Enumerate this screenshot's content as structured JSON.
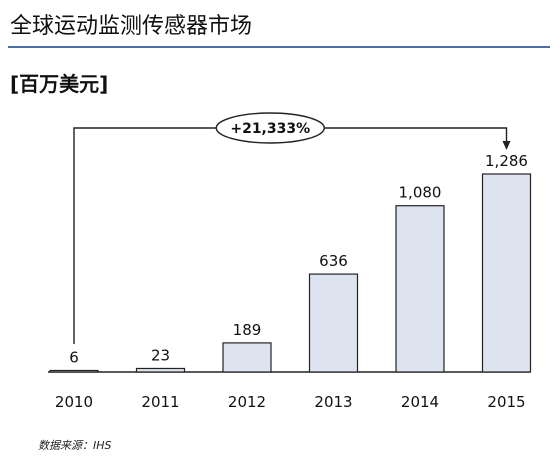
{
  "page": {
    "title": "全球运动监测传感器市场",
    "unit": "[百万美元]",
    "source": "数据来源：IHS"
  },
  "chart_data": {
    "type": "bar",
    "title": "全球运动监测传感器市场",
    "ylabel": "[百万美元]",
    "xlabel": "",
    "categories": [
      "2010",
      "2011",
      "2012",
      "2013",
      "2014",
      "2015"
    ],
    "values": [
      6,
      23,
      189,
      636,
      1080,
      1286
    ],
    "value_labels": [
      "6",
      "23",
      "189",
      "636",
      "1,080",
      "1,286"
    ],
    "growth_annotation": "+21,333%",
    "ylim": [
      0,
      1286
    ],
    "grid": false,
    "bar_color": "#dde3ef",
    "bar_stroke": "#222222",
    "accent_color": "#4a6fa5"
  }
}
